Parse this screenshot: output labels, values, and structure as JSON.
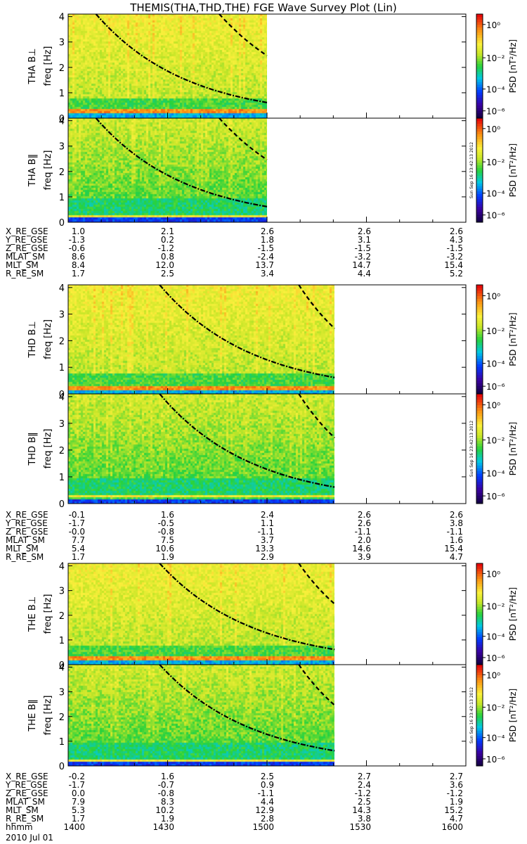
{
  "title": "THEMIS(THA,THD,THE) FGE Wave Survey Plot (Lin)",
  "colorbar": {
    "label": "PSD [nT²/Hz]",
    "tick_labels": [
      "10⁰",
      "10⁻²",
      "10⁻⁴",
      "10⁻⁶"
    ],
    "stamp": "Sun Sep 16 23:42:13 2012"
  },
  "chart_data": {
    "type": "heatmap",
    "x_axis": {
      "label": "hhmm",
      "ticks": [
        "1400",
        "1430",
        "1500",
        "1530",
        "1600"
      ],
      "date": "2010 Jul 01"
    },
    "y_range": [
      0,
      4.1
    ],
    "y_ticks": [
      "0",
      "1",
      "2",
      "3",
      "4"
    ],
    "ylabel": "freq [Hz]",
    "probes": [
      {
        "name": "THA",
        "data_end_fraction": 0.5,
        "panels": [
          {
            "label": "THA B⊥",
            "type": "perp"
          },
          {
            "label": "THA B‖",
            "type": "par"
          }
        ],
        "ephemeris": [
          {
            "label": "X_RE_GSE",
            "values": [
              "1.0",
              "2.1",
              "2.6",
              "2.6",
              "2.6"
            ]
          },
          {
            "label": "Y_RE_GSE",
            "values": [
              "-1.3",
              "0.2",
              "1.8",
              "3.1",
              "4.3"
            ]
          },
          {
            "label": "Z_RE_GSE",
            "values": [
              "-0.6",
              "-1.2",
              "-1.5",
              "-1.5",
              "-1.5"
            ]
          },
          {
            "label": "MLAT_SM",
            "values": [
              "8.6",
              "0.8",
              "-2.4",
              "-3.2",
              "-3.2"
            ]
          },
          {
            "label": "MLT_SM",
            "values": [
              "8.4",
              "12.0",
              "13.7",
              "14.7",
              "15.4"
            ]
          },
          {
            "label": "R_RE_SM",
            "values": [
              "1.7",
              "2.5",
              "3.4",
              "4.4",
              "5.2"
            ]
          }
        ]
      },
      {
        "name": "THD",
        "data_end_fraction": 0.67,
        "panels": [
          {
            "label": "THD B⊥",
            "type": "perp"
          },
          {
            "label": "THD B‖",
            "type": "par"
          }
        ],
        "ephemeris": [
          {
            "label": "X_RE_GSE",
            "values": [
              "-0.1",
              "1.6",
              "2.4",
              "2.6",
              "2.6"
            ]
          },
          {
            "label": "Y_RE_GSE",
            "values": [
              "-1.7",
              "-0.5",
              "1.1",
              "2.6",
              "3.8"
            ]
          },
          {
            "label": "Z_RE_GSE",
            "values": [
              "-0.0",
              "-0.8",
              "-1.1",
              "-1.1",
              "-1.1"
            ]
          },
          {
            "label": "MLAT_SM",
            "values": [
              "7.7",
              "7.5",
              "3.7",
              "2.0",
              "1.6"
            ]
          },
          {
            "label": "MLT_SM",
            "values": [
              "5.4",
              "10.6",
              "13.3",
              "14.6",
              "15.4"
            ]
          },
          {
            "label": "R_RE_SM",
            "values": [
              "1.7",
              "1.9",
              "2.9",
              "3.9",
              "4.7"
            ]
          }
        ]
      },
      {
        "name": "THE",
        "data_end_fraction": 0.67,
        "panels": [
          {
            "label": "THE B⊥",
            "type": "perp"
          },
          {
            "label": "THE B‖",
            "type": "par"
          }
        ],
        "ephemeris": [
          {
            "label": "X_RE_GSE",
            "values": [
              "-0.2",
              "1.6",
              "2.5",
              "2.7",
              "2.7"
            ]
          },
          {
            "label": "Y_RE_GSE",
            "values": [
              "-1.7",
              "-0.7",
              "0.9",
              "2.4",
              "3.6"
            ]
          },
          {
            "label": "Z_RE_GSE",
            "values": [
              "0.0",
              "-0.8",
              "-1.1",
              "-1.2",
              "-1.2"
            ]
          },
          {
            "label": "MLAT_SM",
            "values": [
              "7.9",
              "8.3",
              "4.4",
              "2.5",
              "1.9"
            ]
          },
          {
            "label": "MLT_SM",
            "values": [
              "5.3",
              "10.2",
              "12.9",
              "14.3",
              "15.2"
            ]
          },
          {
            "label": "R_RE_SM",
            "values": [
              "1.7",
              "1.9",
              "2.8",
              "3.8",
              "4.7"
            ]
          }
        ]
      }
    ]
  }
}
